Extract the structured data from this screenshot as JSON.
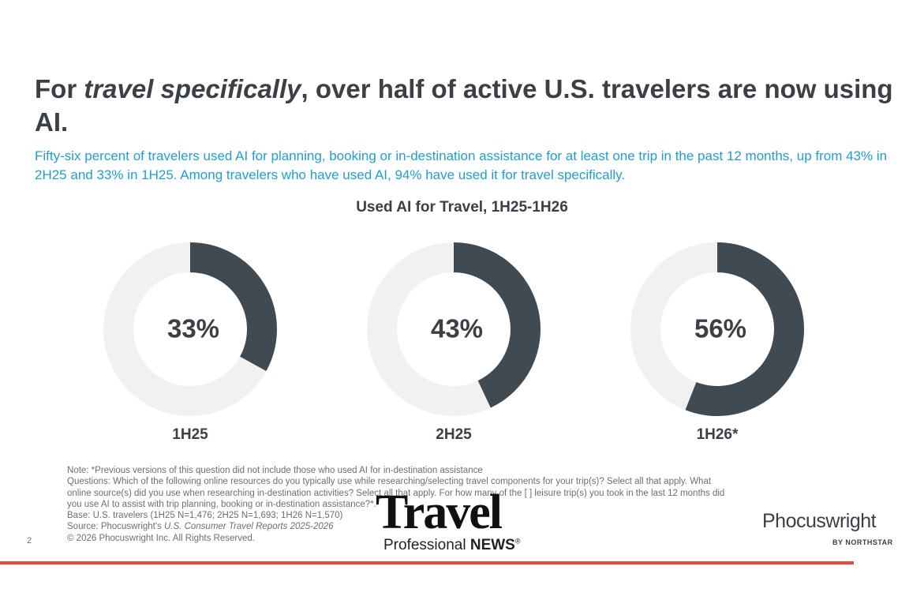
{
  "header": {
    "title_before": "For ",
    "title_emphasis": "travel specifically",
    "title_after": ", over half of active U.S. travelers are now using AI.",
    "subtitle": "Fifty-six percent of travelers used AI for planning, booking or in-destination assistance for at least one trip in the past 12 months, up from 43% in 2H25 and 33% in 1H25. Among travelers who have used AI, 94% have used it for travel specifically."
  },
  "chart_data": {
    "type": "donut",
    "title": "Used AI for Travel, 1H25-1H26",
    "categories": [
      "1H25",
      "2H25",
      "1H26*"
    ],
    "values": [
      33,
      43,
      56
    ],
    "value_labels": [
      "33%",
      "43%",
      "56%"
    ],
    "color": "#3f4a53",
    "track_color": "#f1f1f1"
  },
  "notes": {
    "note": "Note: *Previous versions of this question did not include those who used AI for in-destination assistance",
    "questions": "Questions: Which of the following online resources do you typically use while researching/selecting travel components for your trip(s)? Select all that apply. What online source(s) did you use when researching in-destination activities? Select all that apply. For how many of the [ ] leisure trip(s) you took in the last 12 months did you use AI to assist with trip planning, booking or in-destination assistance?*.",
    "base": "Base: U.S. travelers (1H25 N=1,476; 2H25 N=1,693; 1H26 N=1,570)",
    "source_before": "Source: Phocuswright's ",
    "source_emphasis": "U.S. Consumer Travel Reports 2025-2026",
    "copyright": "© 2026 Phocuswright Inc. All Rights Reserved."
  },
  "page_number": "2",
  "logo": {
    "name": "Phocuswright",
    "sub": "BY NORTHSTAR"
  },
  "watermark": {
    "big": "Travel",
    "small_before": "Professional ",
    "small_bold": "NEWS",
    "mark": "®"
  }
}
